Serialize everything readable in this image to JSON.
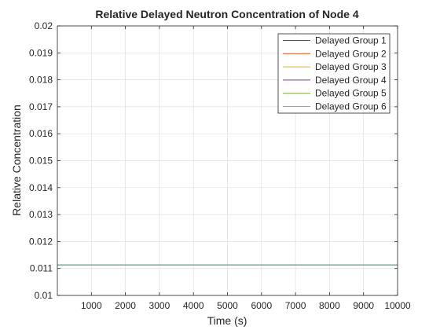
{
  "chart_data": {
    "type": "line",
    "title": "Relative Delayed Neutron Concentration of Node 4",
    "xlabel": "Time (s)",
    "ylabel": "Relative Concentration",
    "xlim": [
      0,
      10000
    ],
    "ylim": [
      0.01,
      0.02
    ],
    "xticks": [
      1000,
      2000,
      3000,
      4000,
      5000,
      6000,
      7000,
      8000,
      9000,
      10000
    ],
    "xtick_labels": [
      "1000",
      "2000",
      "3000",
      "4000",
      "5000",
      "6000",
      "7000",
      "8000",
      "9000",
      "10000"
    ],
    "yticks": [
      0.01,
      0.011,
      0.012,
      0.013,
      0.014,
      0.015,
      0.016,
      0.017,
      0.018,
      0.019,
      0.02
    ],
    "ytick_labels": [
      "0.01",
      "0.011",
      "0.012",
      "0.013",
      "0.014",
      "0.015",
      "0.016",
      "0.017",
      "0.018",
      "0.019",
      "0.02"
    ],
    "grid": true,
    "legend_position": "top-right",
    "series": [
      {
        "name": "Delayed Group 1",
        "color": "#0072BD",
        "x": [
          0,
          10000
        ],
        "y": [
          0.01113,
          0.01113
        ]
      },
      {
        "name": "Delayed Group 2",
        "color": "#D95319",
        "x": [
          0,
          10000
        ],
        "y": [
          0.01113,
          0.01113
        ]
      },
      {
        "name": "Delayed Group 3",
        "color": "#EDB120",
        "x": [
          0,
          10000
        ],
        "y": [
          0.01113,
          0.01113
        ]
      },
      {
        "name": "Delayed Group 4",
        "color": "#7E2F8E",
        "x": [
          0,
          10000
        ],
        "y": [
          0.01113,
          0.01113
        ]
      },
      {
        "name": "Delayed Group 5",
        "color": "#77AC30",
        "x": [
          0,
          10000
        ],
        "y": [
          0.01113,
          0.01113
        ]
      },
      {
        "name": "Delayed Group 6",
        "color": "#4DBEEE",
        "x": [
          0,
          10000
        ],
        "y": [
          0.01113,
          0.01113
        ]
      }
    ]
  }
}
